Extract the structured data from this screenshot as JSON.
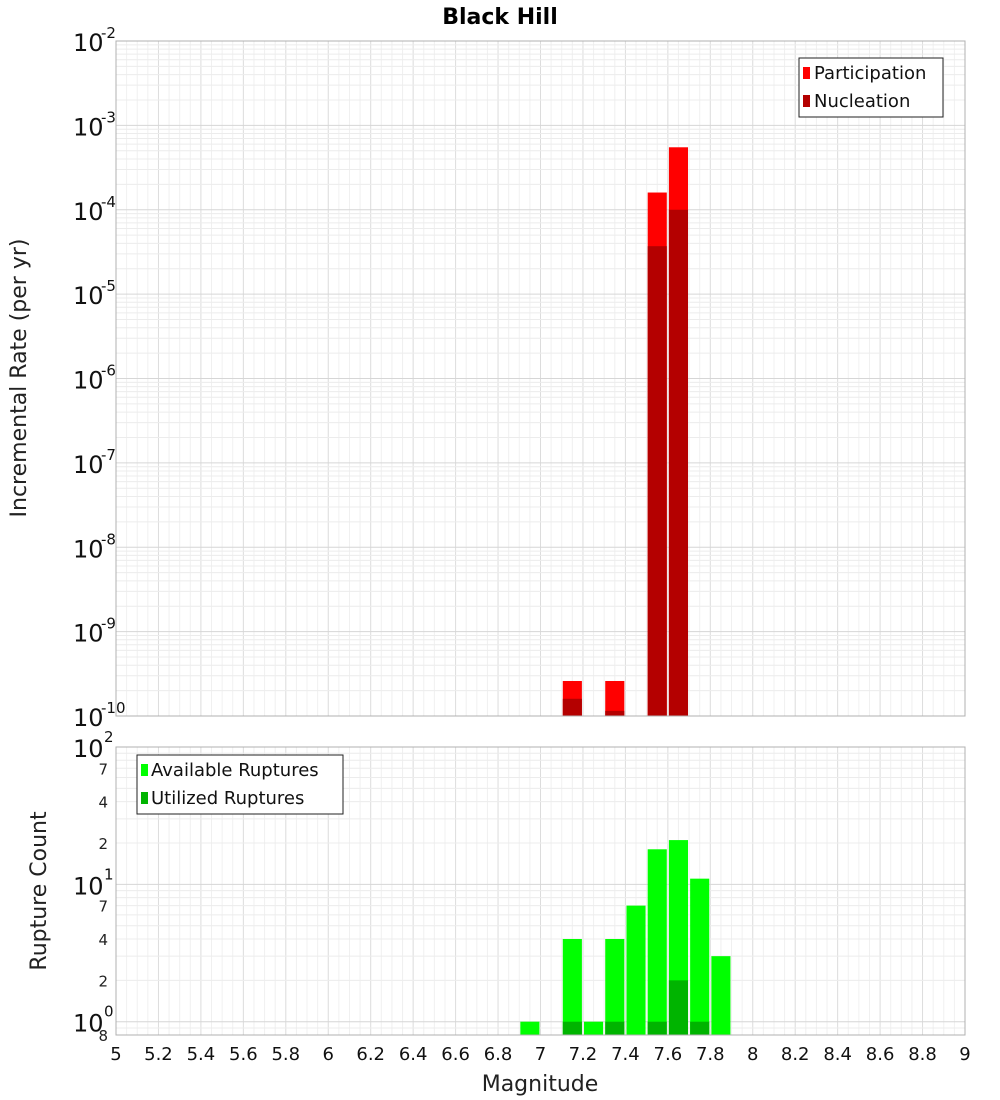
{
  "chart_data": [
    {
      "type": "bar",
      "title": "Black Hill",
      "xlabel": "",
      "ylabel": "Incremental Rate (per yr)",
      "yscale": "log",
      "xlim": [
        5,
        9
      ],
      "ylim": [
        1e-10,
        0.01
      ],
      "grid": true,
      "legend_position": "top-right",
      "y_tick_labels": [
        {
          "base": "10",
          "exp": "-2"
        },
        {
          "base": "10",
          "exp": "-3"
        },
        {
          "base": "10",
          "exp": "-4"
        },
        {
          "base": "10",
          "exp": "-5"
        },
        {
          "base": "10",
          "exp": "-6"
        },
        {
          "base": "10",
          "exp": "-7"
        },
        {
          "base": "10",
          "exp": "-8"
        },
        {
          "base": "10",
          "exp": "-9"
        },
        {
          "base": "10",
          "exp": "-10"
        }
      ],
      "series": [
        {
          "name": "Participation",
          "color": "#ff0000",
          "points": [
            {
              "x": 7.15,
              "y": 2.6e-10
            },
            {
              "x": 7.35,
              "y": 2.6e-10
            },
            {
              "x": 7.55,
              "y": 0.00016
            },
            {
              "x": 7.65,
              "y": 0.00055
            }
          ]
        },
        {
          "name": "Nucleation",
          "color": "#b40000",
          "points": [
            {
              "x": 7.15,
              "y": 1.6e-10
            },
            {
              "x": 7.35,
              "y": 1.15e-10
            },
            {
              "x": 7.55,
              "y": 3.7e-05
            },
            {
              "x": 7.65,
              "y": 0.0001
            }
          ]
        }
      ]
    },
    {
      "type": "bar",
      "title": "",
      "xlabel": "Magnitude",
      "ylabel": "Rupture Count",
      "yscale": "log",
      "xlim": [
        5,
        9
      ],
      "ylim": [
        0.8,
        100
      ],
      "grid": true,
      "legend_position": "top-left",
      "x_tick_labels": [
        "5",
        "5.2",
        "5.4",
        "5.6",
        "5.8",
        "6",
        "6.2",
        "6.4",
        "6.6",
        "6.8",
        "7",
        "7.2",
        "7.4",
        "7.6",
        "7.8",
        "8",
        "8.2",
        "8.4",
        "8.6",
        "8.8",
        "9"
      ],
      "y_tick_labels": [
        {
          "base": "10",
          "exp": "2"
        },
        {
          "base": "10",
          "exp": "1"
        },
        {
          "base": "10",
          "exp": "0"
        }
      ],
      "y_minor_labels": [
        {
          "value": 70,
          "label": "7"
        },
        {
          "value": 40,
          "label": "4"
        },
        {
          "value": 20,
          "label": "2"
        },
        {
          "value": 7,
          "label": "7"
        },
        {
          "value": 4,
          "label": "4"
        },
        {
          "value": 2,
          "label": "2"
        },
        {
          "value": 0.8,
          "label": "8"
        }
      ],
      "series": [
        {
          "name": "Available Ruptures",
          "color": "#00ff00",
          "points": [
            {
              "x": 6.95,
              "y": 1
            },
            {
              "x": 7.15,
              "y": 4
            },
            {
              "x": 7.25,
              "y": 1
            },
            {
              "x": 7.35,
              "y": 4
            },
            {
              "x": 7.45,
              "y": 7
            },
            {
              "x": 7.55,
              "y": 18
            },
            {
              "x": 7.65,
              "y": 21
            },
            {
              "x": 7.75,
              "y": 11
            },
            {
              "x": 7.85,
              "y": 3
            }
          ]
        },
        {
          "name": "Utilized Ruptures",
          "color": "#00b400",
          "points": [
            {
              "x": 7.15,
              "y": 1
            },
            {
              "x": 7.35,
              "y": 1
            },
            {
              "x": 7.55,
              "y": 1
            },
            {
              "x": 7.65,
              "y": 2
            },
            {
              "x": 7.75,
              "y": 1
            }
          ]
        }
      ]
    }
  ]
}
